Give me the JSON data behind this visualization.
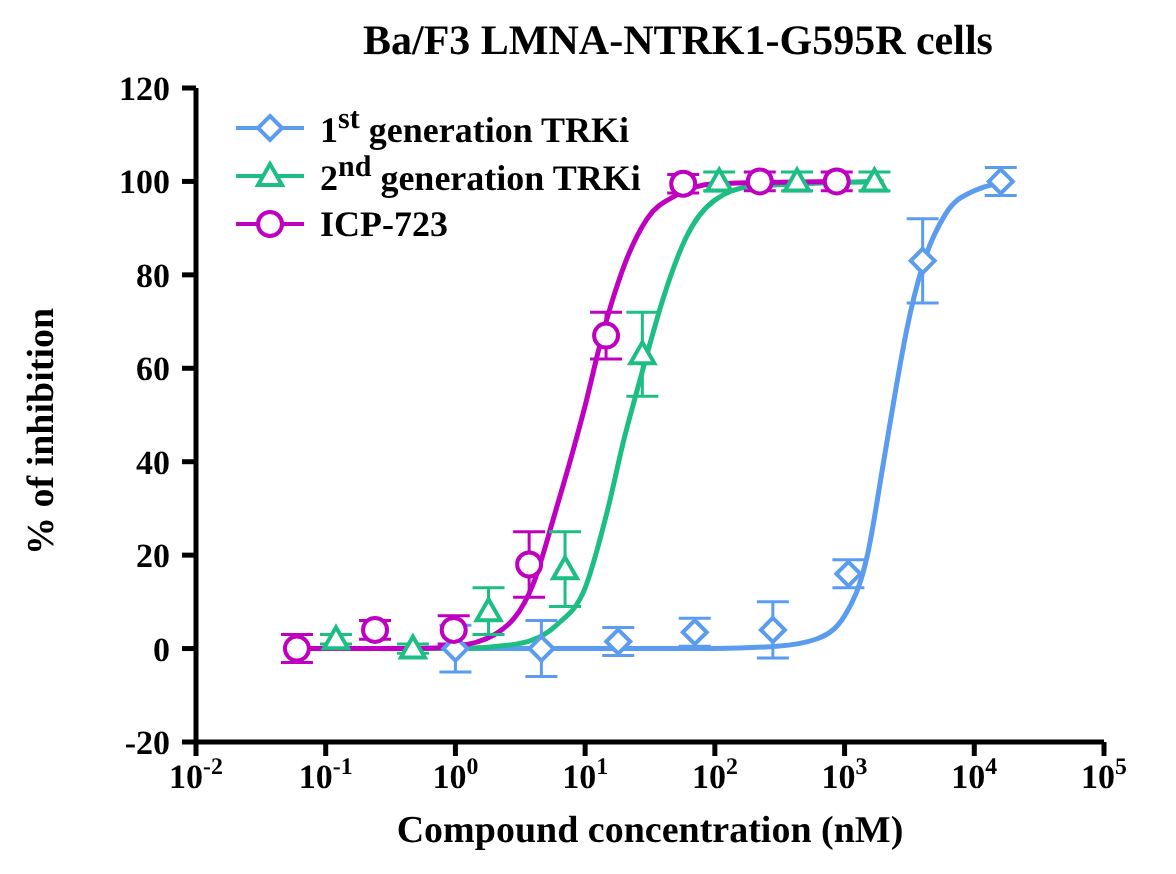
{
  "chart_data": {
    "type": "scatter",
    "title": "Ba/F3 LMNA-NTRK1-G595R cells",
    "xlabel": "Compound concentration (nM)",
    "ylabel": "% of inhibition",
    "log": "x",
    "grid": false,
    "legend": "top left",
    "xlim": [
      0.01,
      100000
    ],
    "xticks": [
      {
        "value": 0.01,
        "label": "10$^{-2}$"
      },
      {
        "value": 0.1,
        "label": "10$^{-1}$"
      },
      {
        "value": 1,
        "label": "10$^{0}$"
      },
      {
        "value": 10,
        "label": "10$^{1}$"
      },
      {
        "value": 100,
        "label": "10$^{2}$"
      },
      {
        "value": 1000,
        "label": "10$^{3}$"
      },
      {
        "value": 10000,
        "label": "10$^{4}$"
      },
      {
        "value": 100000,
        "label": "10$^{5}$"
      }
    ],
    "ylim": [
      -20,
      120
    ],
    "yticks": [
      -20,
      0,
      20,
      40,
      60,
      80,
      100,
      120
    ],
    "series": [
      {
        "name": "1$^{st}$ generation TRKi",
        "color": "#5b9cf0",
        "marker": "diamond",
        "x": [
          1,
          4.6,
          18,
          70,
          280,
          1070,
          4000,
          16000
        ],
        "values": [
          0,
          0,
          1.5,
          3.5,
          4,
          16,
          83,
          100
        ],
        "errors": [
          5,
          6,
          3,
          3,
          6,
          3,
          9,
          3
        ]
      },
      {
        "name": "2$^{nd}$ generation TRKi",
        "color": "#1dbe83",
        "marker": "triangle",
        "x": [
          0.12,
          0.47,
          1.8,
          7,
          27.6,
          108,
          430,
          1700
        ],
        "values": [
          2,
          0,
          8,
          17,
          63,
          100,
          100,
          100
        ],
        "errors": [
          1,
          1,
          5,
          8,
          9,
          2,
          2,
          2
        ]
      },
      {
        "name": "ICP-723",
        "color": "#c000c0",
        "marker": "circle",
        "x": [
          0.06,
          0.24,
          0.97,
          3.7,
          14.5,
          57,
          222,
          870
        ],
        "values": [
          0,
          4,
          4,
          18,
          67,
          99.5,
          100,
          100
        ],
        "errors": [
          3,
          2,
          3,
          7,
          5,
          2,
          2,
          2
        ]
      },
      {
        "type": "line",
        "color": "#5b9cf0",
        "marker": "none",
        "x": [
          1,
          10,
          100,
          300,
          600,
          1000,
          1500,
          2000,
          2500,
          3000,
          4000,
          6000,
          10000,
          20000
        ],
        "values": [
          0,
          0,
          0,
          0.5,
          2,
          7,
          20,
          40,
          56,
          68,
          82,
          93,
          98,
          100
        ]
      },
      {
        "type": "line",
        "color": "#1dbe83",
        "marker": "none",
        "x": [
          0.1,
          1,
          3,
          6,
          10,
          15,
          20,
          25,
          30,
          40,
          60,
          100,
          200,
          2000
        ],
        "values": [
          0,
          0,
          1,
          5,
          13,
          30,
          45,
          55,
          63,
          75,
          88,
          96,
          99,
          100
        ]
      },
      {
        "type": "line",
        "color": "#c000c0",
        "marker": "none",
        "x": [
          0.06,
          0.5,
          1,
          2,
          4,
          6,
          8,
          10,
          13,
          16,
          20,
          30,
          50,
          100,
          900
        ],
        "values": [
          0,
          0,
          0.5,
          3,
          14,
          30,
          42,
          52,
          65,
          74,
          82,
          92,
          97,
          99.5,
          100
        ]
      }
    ]
  }
}
